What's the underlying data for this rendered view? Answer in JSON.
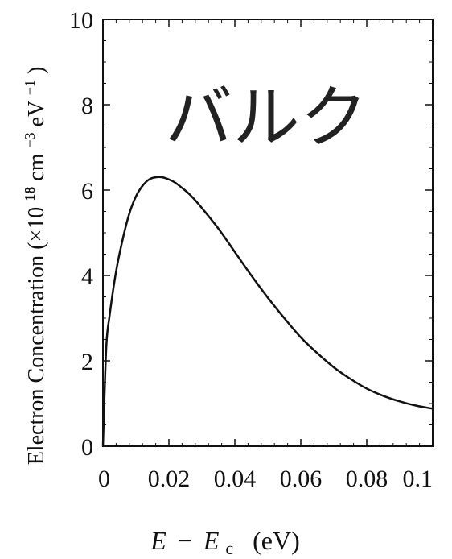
{
  "chart_data": {
    "type": "line",
    "overlay_label": "バルク",
    "xlabel": {
      "E1": "E",
      "minus": "−",
      "E2": "E",
      "sub": "c",
      "unit": "(eV)"
    },
    "ylabel": {
      "text1": "Electron Concentration (×10",
      "exp1": "18",
      "text2": " cm",
      "exp2": "−3",
      "text3": " eV",
      "exp3": "−1",
      "text4": ")"
    },
    "xlim": [
      0,
      0.1
    ],
    "ylim": [
      0,
      10
    ],
    "x_ticks": [
      "0",
      "0.02",
      "0.04",
      "0.06",
      "0.08",
      "0.1"
    ],
    "y_ticks": [
      "0",
      "2",
      "4",
      "6",
      "8",
      "10"
    ],
    "series": [
      {
        "color": "#111111",
        "x": [
          0,
          0.001,
          0.002,
          0.004,
          0.006,
          0.008,
          0.01,
          0.012,
          0.014,
          0.016,
          0.018,
          0.02,
          0.022,
          0.024,
          0.026,
          0.028,
          0.03,
          0.035,
          0.04,
          0.045,
          0.05,
          0.055,
          0.06,
          0.065,
          0.07,
          0.075,
          0.08,
          0.085,
          0.09,
          0.095,
          0.1
        ],
        "y": [
          0,
          2.3,
          3.05,
          4.1,
          4.85,
          5.45,
          5.85,
          6.1,
          6.25,
          6.3,
          6.3,
          6.25,
          6.17,
          6.05,
          5.92,
          5.76,
          5.58,
          5.1,
          4.55,
          4.0,
          3.48,
          3.0,
          2.55,
          2.18,
          1.85,
          1.58,
          1.35,
          1.18,
          1.05,
          0.95,
          0.88
        ]
      }
    ]
  }
}
